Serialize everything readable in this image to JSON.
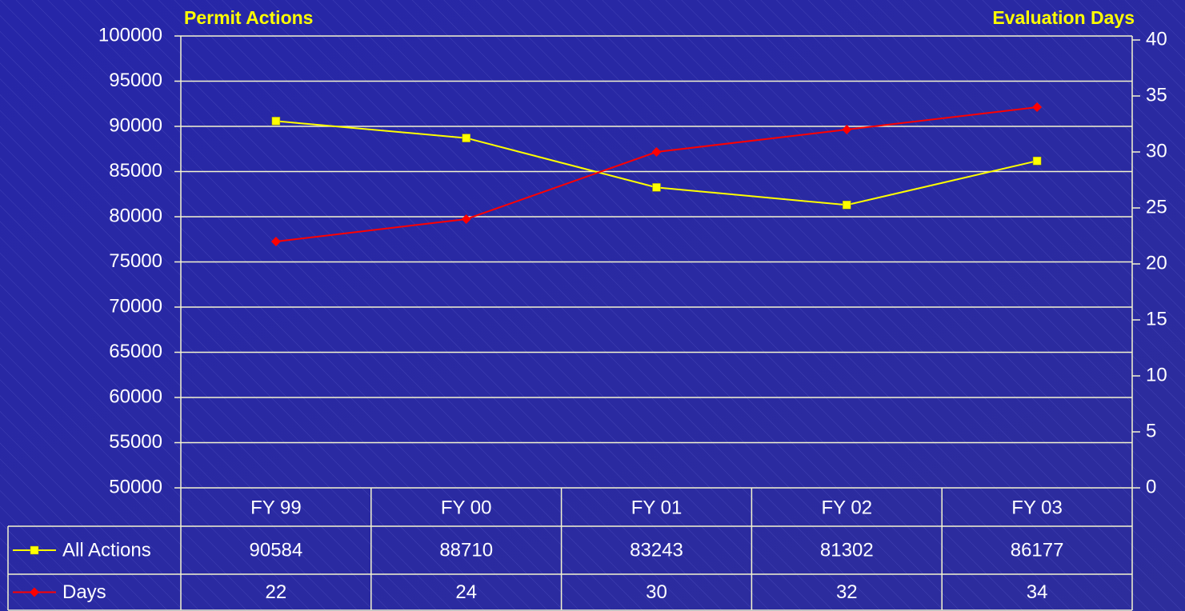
{
  "chart_data": {
    "type": "line",
    "y_label": "Permit Actions",
    "y2_label": "Evaluation Days",
    "categories": [
      "FY 99",
      "FY 00",
      "FY 01",
      "FY 02",
      "FY 03"
    ],
    "series": [
      {
        "name": "All Actions",
        "color": "#ffff00",
        "marker": "square",
        "values": [
          90584,
          88710,
          83243,
          81302,
          86177
        ]
      },
      {
        "name": "Days",
        "color": "#ff0000",
        "marker": "diamond",
        "axis": "y2",
        "values": [
          22,
          24,
          30,
          32,
          34
        ]
      }
    ],
    "ylim": [
      50000,
      100000
    ],
    "yticks": [
      50000,
      55000,
      60000,
      65000,
      70000,
      75000,
      80000,
      85000,
      90000,
      95000,
      100000
    ],
    "y2lim": [
      0,
      40
    ],
    "y2ticks": [
      0,
      5,
      10,
      15,
      20,
      25,
      30,
      35,
      40
    ],
    "grid": true,
    "data_table": true
  }
}
